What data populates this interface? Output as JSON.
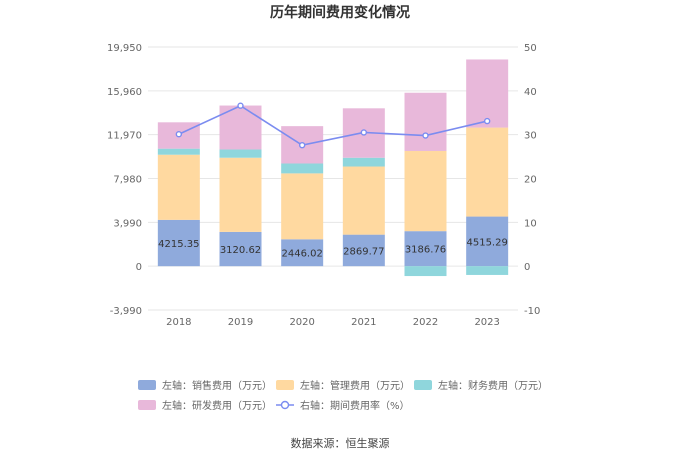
{
  "chart_data": {
    "type": "bar",
    "stacked": true,
    "title": "历年期间费用变化情况",
    "categories": [
      "2018",
      "2019",
      "2020",
      "2021",
      "2022",
      "2023"
    ],
    "series": [
      {
        "name": "左轴：销售费用（万元）",
        "axis": "left",
        "color": "#8faadc",
        "values": [
          4215.35,
          3120.62,
          2446.02,
          2869.77,
          3186.76,
          4515.29
        ]
      },
      {
        "name": "左轴：管理费用（万元）",
        "axis": "left",
        "color": "#ffd9a0",
        "values": [
          5930,
          6750,
          6000,
          6200,
          7300,
          8100
        ]
      },
      {
        "name": "左轴：财务费用（万元）",
        "axis": "left",
        "color": "#8fd6dc",
        "values": [
          550,
          750,
          900,
          800,
          -900,
          -800
        ]
      },
      {
        "name": "左轴：研发费用（万元）",
        "axis": "left",
        "color": "#e8b8da",
        "values": [
          2400,
          4000,
          3400,
          4500,
          5300,
          6200
        ]
      },
      {
        "name": "右轴：期间费用率（%）",
        "axis": "right",
        "type": "line",
        "color": "#7b8cf0",
        "values": [
          30.1,
          36.6,
          27.6,
          30.5,
          29.8,
          33.1
        ]
      }
    ],
    "data_labels": [
      "4215.35",
      "3120.62",
      "2446.02",
      "2869.77",
      "3186.76",
      "4515.29"
    ],
    "y_left": {
      "ticks": [
        "-3,990",
        "0",
        "3,990",
        "7,980",
        "11,970",
        "15,960",
        "19,950"
      ],
      "ylim": [
        -3990,
        19950
      ]
    },
    "y_right": {
      "ticks": [
        "-10",
        "0",
        "10",
        "20",
        "30",
        "40",
        "50"
      ],
      "ylim": [
        -10,
        50
      ]
    },
    "grid": true,
    "legend_position": "bottom"
  },
  "source": "数据来源：恒生聚源"
}
